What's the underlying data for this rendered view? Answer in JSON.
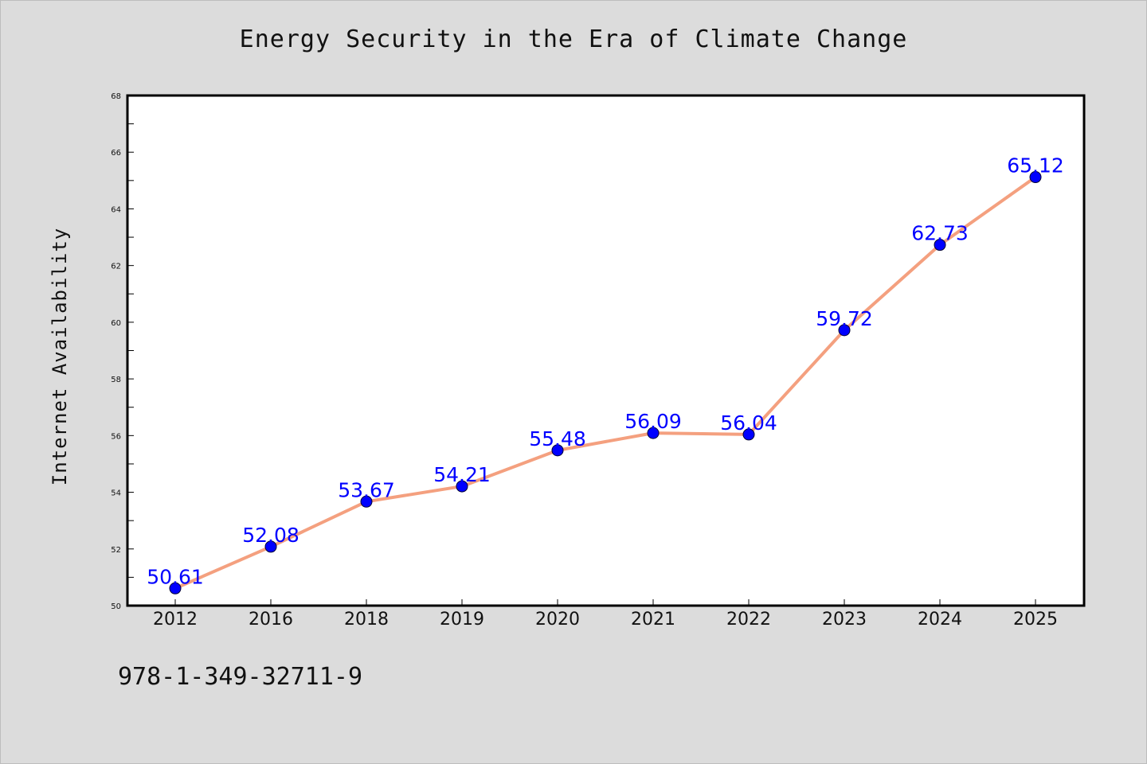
{
  "title": "Energy Security in the Era of Climate Change",
  "footer_code": "978-1-349-32711-9",
  "chart_data": {
    "type": "line",
    "title": "Energy Security in the Era of Climate Change",
    "xlabel": "",
    "ylabel": "Internet Availability",
    "categories": [
      "2012",
      "2016",
      "2018",
      "2019",
      "2020",
      "2021",
      "2022",
      "2023",
      "2024",
      "2025"
    ],
    "values": [
      50.61,
      52.08,
      53.67,
      54.21,
      55.48,
      56.09,
      56.04,
      59.72,
      62.73,
      65.12
    ],
    "data_labels": [
      "50.61",
      "52.08",
      "53.67",
      "54.21",
      "55.48",
      "56.09",
      "56.04",
      "59.72",
      "62.73",
      "65.12"
    ],
    "ylim": [
      50,
      68
    ],
    "yticks": [
      50,
      52,
      54,
      56,
      58,
      60,
      62,
      64,
      66,
      68
    ],
    "grid": false,
    "legend": "none",
    "colors": {
      "line": "#f4a07f",
      "marker": "#0000ff",
      "data_label": "#0000ff",
      "plot_background": "#ffffff",
      "page_background": "#dcdcdc"
    }
  }
}
